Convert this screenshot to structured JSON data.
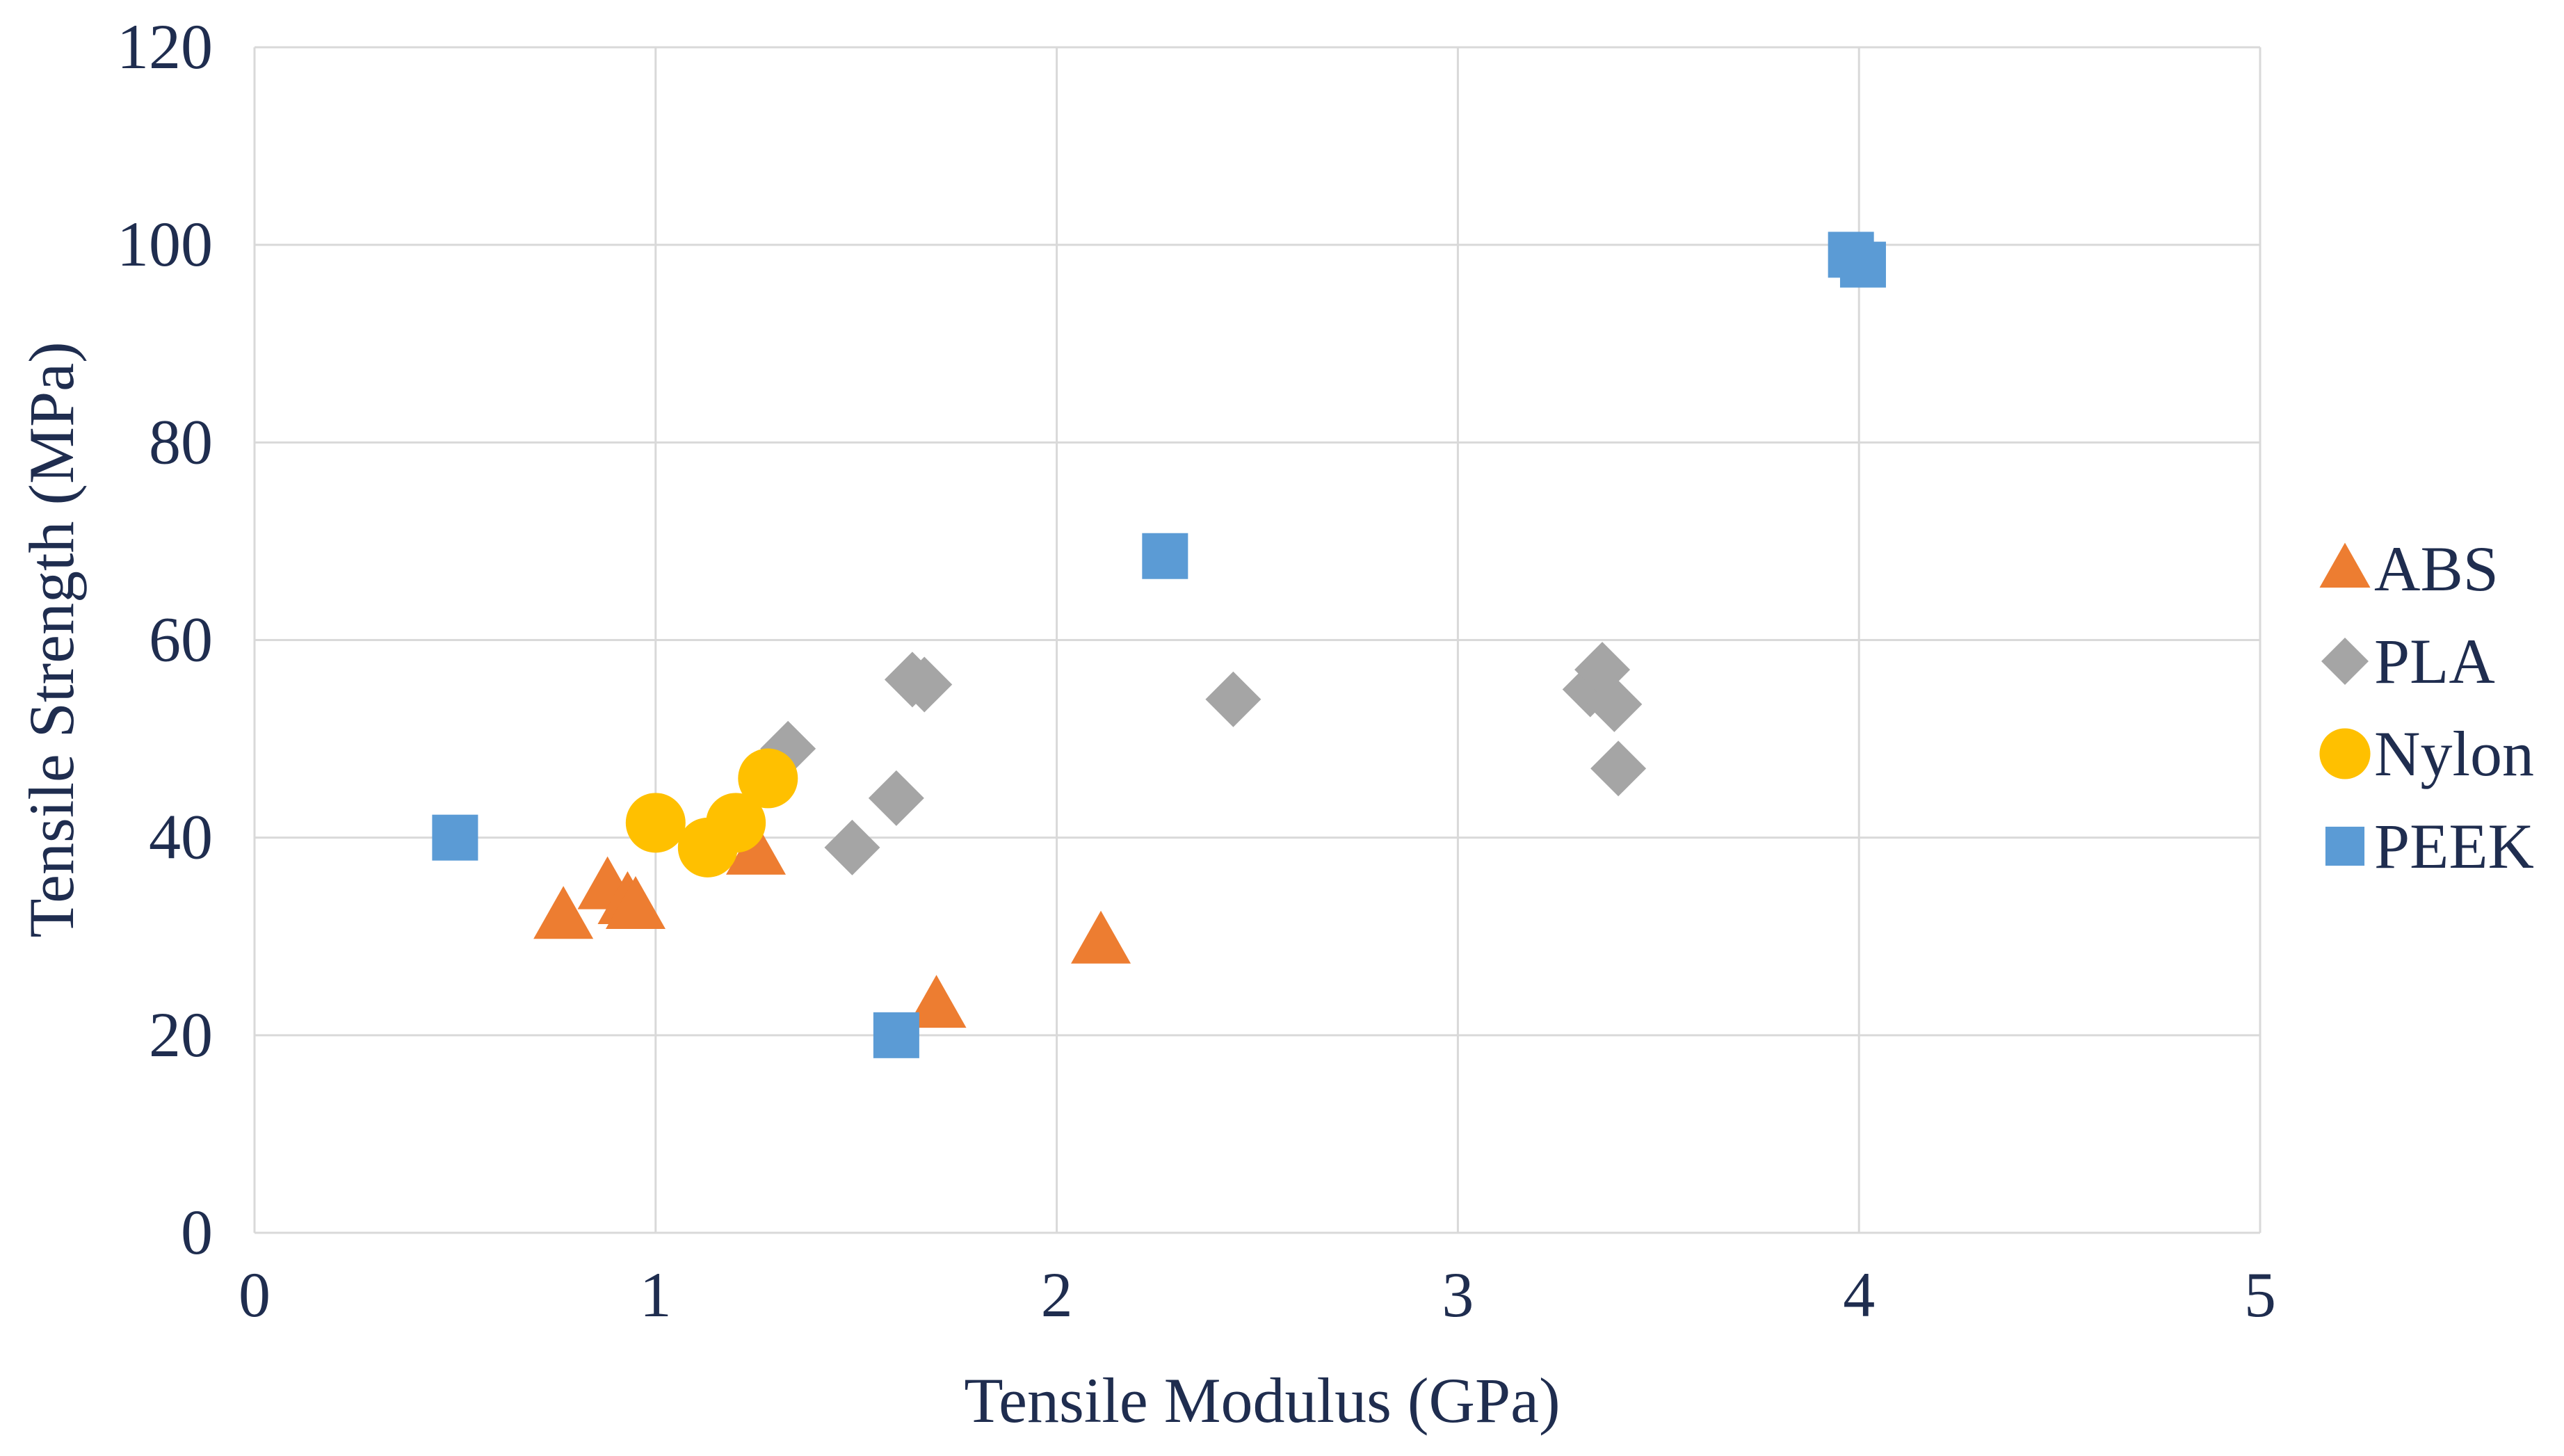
{
  "chart_data": {
    "type": "scatter",
    "title": "",
    "xlabel": "Tensile Modulus (GPa)",
    "ylabel": "Tensile Strength (MPa)",
    "xlim": [
      0,
      5
    ],
    "ylim": [
      0,
      120
    ],
    "x_ticks": [
      "0",
      "1",
      "2",
      "3",
      "4",
      "5"
    ],
    "y_ticks": [
      "0",
      "20",
      "40",
      "60",
      "80",
      "100",
      "120"
    ],
    "grid": true,
    "legend_position": "right",
    "series": [
      {
        "name": "ABS",
        "marker": "triangle",
        "color": "#ed7d31",
        "points": [
          [
            0.77,
            32
          ],
          [
            0.88,
            35
          ],
          [
            0.93,
            33.5
          ],
          [
            0.95,
            33
          ],
          [
            1.25,
            38.5
          ],
          [
            1.7,
            23
          ],
          [
            2.11,
            29.5
          ]
        ]
      },
      {
        "name": "PLA",
        "marker": "diamond",
        "color": "#a5a5a5",
        "points": [
          [
            1.33,
            49
          ],
          [
            1.49,
            39
          ],
          [
            1.6,
            44
          ],
          [
            1.64,
            56
          ],
          [
            1.67,
            55.5
          ],
          [
            2.44,
            54
          ],
          [
            3.33,
            55
          ],
          [
            3.36,
            57
          ],
          [
            3.39,
            53.5
          ],
          [
            3.4,
            47
          ]
        ]
      },
      {
        "name": "Nylon",
        "marker": "circle",
        "color": "#ffc000",
        "points": [
          [
            1.0,
            41.5
          ],
          [
            1.13,
            39
          ],
          [
            1.2,
            41.5
          ],
          [
            1.28,
            46
          ]
        ]
      },
      {
        "name": "PEEK",
        "marker": "square",
        "color": "#5b9bd5",
        "points": [
          [
            0.5,
            40
          ],
          [
            1.6,
            20
          ],
          [
            2.27,
            68.5
          ],
          [
            3.98,
            99
          ],
          [
            4.01,
            98
          ]
        ]
      }
    ]
  }
}
